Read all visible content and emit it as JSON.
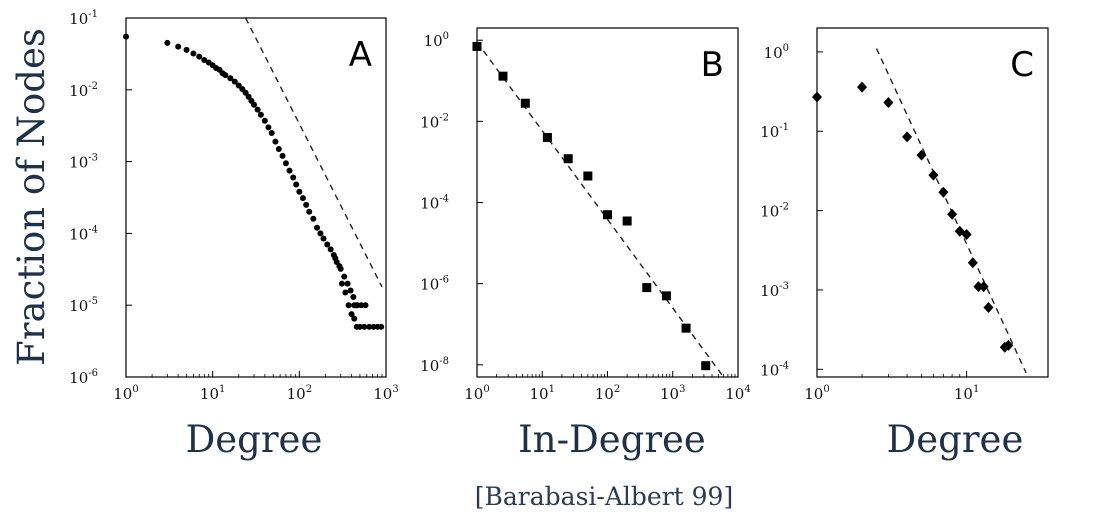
{
  "figure": {
    "ylabel": "Fraction of Nodes",
    "citation": "[Barabasi-Albert 99]"
  },
  "chart_data": [
    {
      "type": "scatter",
      "panel_label": "A",
      "xlabel": "Degree",
      "ylabel": "Fraction of Nodes",
      "x_scale": "log",
      "y_scale": "log",
      "xlim": [
        1,
        1000
      ],
      "ylim": [
        1e-06,
        0.1
      ],
      "x_ticks": [
        {
          "base": "10",
          "exp": "0",
          "value": 1
        },
        {
          "base": "10",
          "exp": "1",
          "value": 10
        },
        {
          "base": "10",
          "exp": "2",
          "value": 100
        },
        {
          "base": "10",
          "exp": "3",
          "value": 1000
        }
      ],
      "y_ticks": [
        {
          "base": "10",
          "exp": "-6",
          "value": 1e-06
        },
        {
          "base": "10",
          "exp": "-5",
          "value": 1e-05
        },
        {
          "base": "10",
          "exp": "-4",
          "value": 0.0001
        },
        {
          "base": "10",
          "exp": "-3",
          "value": 0.001
        },
        {
          "base": "10",
          "exp": "-2",
          "value": 0.01
        },
        {
          "base": "10",
          "exp": "-1",
          "value": 0.1
        }
      ],
      "marker": "circle",
      "points": [
        [
          1,
          0.055
        ],
        [
          3,
          0.045
        ],
        [
          4,
          0.04
        ],
        [
          5,
          0.036
        ],
        [
          6,
          0.032
        ],
        [
          7,
          0.029
        ],
        [
          8,
          0.026
        ],
        [
          9,
          0.024
        ],
        [
          10,
          0.022
        ],
        [
          11,
          0.02
        ],
        [
          12,
          0.019
        ],
        [
          13,
          0.017
        ],
        [
          14,
          0.016
        ],
        [
          16,
          0.0145
        ],
        [
          18,
          0.013
        ],
        [
          20,
          0.0115
        ],
        [
          22,
          0.0102
        ],
        [
          24,
          0.0091
        ],
        [
          26,
          0.008
        ],
        [
          28,
          0.007
        ],
        [
          30,
          0.0062
        ],
        [
          33,
          0.0053
        ],
        [
          36,
          0.0045
        ],
        [
          40,
          0.0037
        ],
        [
          44,
          0.003
        ],
        [
          48,
          0.0025
        ],
        [
          53,
          0.0019
        ],
        [
          58,
          0.0015
        ],
        [
          64,
          0.0012
        ],
        [
          70,
          0.00095
        ],
        [
          77,
          0.00075
        ],
        [
          85,
          0.0006
        ],
        [
          92,
          0.00048
        ],
        [
          100,
          0.00038
        ],
        [
          110,
          0.00031
        ],
        [
          120,
          0.00025
        ],
        [
          130,
          0.0002
        ],
        [
          145,
          0.00016
        ],
        [
          160,
          0.00012
        ],
        [
          175,
          0.0001
        ],
        [
          190,
          8.5e-05
        ],
        [
          210,
          7e-05
        ],
        [
          230,
          6e-05
        ],
        [
          250,
          5e-05
        ],
        [
          270,
          4e-05
        ],
        [
          300,
          3.2e-05
        ],
        [
          330,
          2.5e-05
        ],
        [
          360,
          2e-05
        ],
        [
          390,
          1.6e-05
        ],
        [
          420,
          1.3e-05
        ],
        [
          450,
          1e-05
        ],
        [
          260,
          4.5e-05
        ],
        [
          290,
          3.5e-05
        ],
        [
          310,
          2e-05
        ],
        [
          340,
          1.5e-05
        ],
        [
          370,
          1e-05
        ],
        [
          400,
          7.5e-06
        ],
        [
          430,
          6.5e-06
        ],
        [
          460,
          5e-06
        ],
        [
          500,
          5e-06
        ],
        [
          560,
          5e-06
        ],
        [
          640,
          5e-06
        ],
        [
          720,
          5e-06
        ],
        [
          800,
          5e-06
        ],
        [
          880,
          5e-06
        ],
        [
          430,
          1e-05
        ],
        [
          470,
          1e-05
        ],
        [
          520,
          1e-05
        ],
        [
          580,
          1e-05
        ]
      ],
      "fit_line": [
        [
          24,
          0.1
        ],
        [
          900,
          1.8e-05
        ]
      ]
    },
    {
      "type": "scatter",
      "panel_label": "B",
      "xlabel": "In-Degree",
      "x_scale": "log",
      "y_scale": "log",
      "xlim": [
        1,
        10000
      ],
      "ylim": [
        5e-09,
        2
      ],
      "x_ticks": [
        {
          "base": "10",
          "exp": "0",
          "value": 1
        },
        {
          "base": "10",
          "exp": "1",
          "value": 10
        },
        {
          "base": "10",
          "exp": "2",
          "value": 100
        },
        {
          "base": "10",
          "exp": "3",
          "value": 1000
        },
        {
          "base": "10",
          "exp": "4",
          "value": 10000
        }
      ],
      "y_ticks": [
        {
          "base": "10",
          "exp": "-8",
          "value": 1e-08
        },
        {
          "base": "10",
          "exp": "-6",
          "value": 1e-06
        },
        {
          "base": "10",
          "exp": "-4",
          "value": 0.0001
        },
        {
          "base": "10",
          "exp": "-2",
          "value": 0.01
        },
        {
          "base": "10",
          "exp": "0",
          "value": 1
        }
      ],
      "marker": "square",
      "points": [
        [
          1,
          0.7
        ],
        [
          2.5,
          0.13
        ],
        [
          5.5,
          0.028
        ],
        [
          12,
          0.004
        ],
        [
          25,
          0.0012
        ],
        [
          50,
          0.00045
        ],
        [
          100,
          5e-05
        ],
        [
          200,
          3.5e-05
        ],
        [
          400,
          8e-07
        ],
        [
          800,
          5e-07
        ],
        [
          1600,
          8e-08
        ],
        [
          3200,
          9.5e-09
        ]
      ],
      "fit_line": [
        [
          1,
          0.9
        ],
        [
          6000,
          5e-09
        ]
      ]
    },
    {
      "type": "scatter",
      "panel_label": "C",
      "xlabel": "Degree",
      "x_scale": "log",
      "y_scale": "log",
      "xlim": [
        1,
        35
      ],
      "ylim": [
        8e-05,
        2
      ],
      "x_ticks": [
        {
          "base": "10",
          "exp": "0",
          "value": 1
        },
        {
          "base": "10",
          "exp": "1",
          "value": 10
        }
      ],
      "y_ticks": [
        {
          "base": "10",
          "exp": "-4",
          "value": 0.0001
        },
        {
          "base": "10",
          "exp": "-3",
          "value": 0.001
        },
        {
          "base": "10",
          "exp": "-2",
          "value": 0.01
        },
        {
          "base": "10",
          "exp": "-1",
          "value": 0.1
        },
        {
          "base": "10",
          "exp": "0",
          "value": 1
        }
      ],
      "marker": "diamond",
      "points": [
        [
          1,
          0.27
        ],
        [
          2,
          0.36
        ],
        [
          3,
          0.23
        ],
        [
          4,
          0.085
        ],
        [
          5,
          0.05
        ],
        [
          6,
          0.028
        ],
        [
          7,
          0.017
        ],
        [
          8,
          0.009
        ],
        [
          9,
          0.0055
        ],
        [
          10,
          0.005
        ],
        [
          11,
          0.0022
        ],
        [
          12,
          0.0011
        ],
        [
          13,
          0.0011
        ],
        [
          14,
          0.0006
        ],
        [
          18,
          0.00019
        ],
        [
          19,
          0.0002
        ]
      ],
      "fit_line": [
        [
          2.5,
          1.1
        ],
        [
          25,
          9e-05
        ]
      ]
    }
  ]
}
